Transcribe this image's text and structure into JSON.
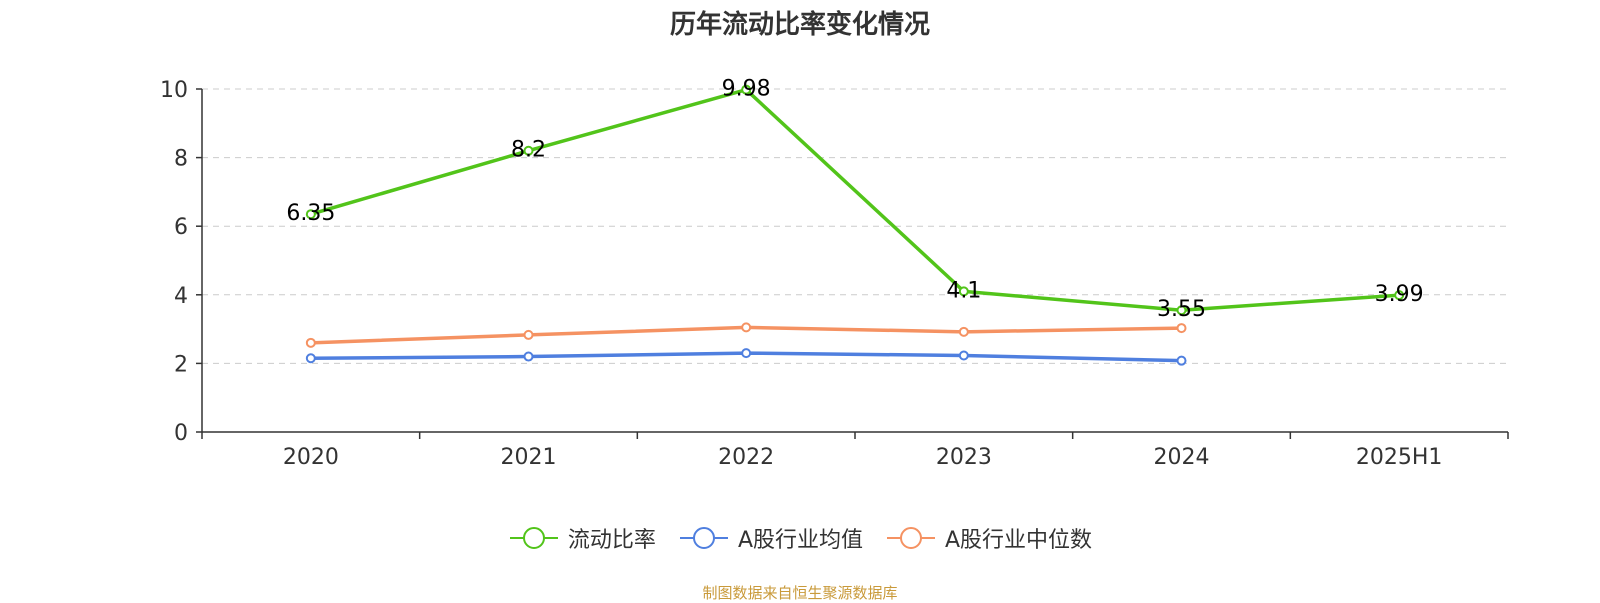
{
  "title": "历年流动比率变化情况",
  "source_note": "制图数据来自恒生聚源数据库",
  "colors": {
    "axis": "#333333",
    "grid": "#cccccc",
    "text": "#333333",
    "source": "#c99a3a"
  },
  "chart_data": {
    "type": "line",
    "title": "历年流动比率变化情况",
    "xlabel": "",
    "ylabel": "",
    "categories": [
      "2020",
      "2021",
      "2022",
      "2023",
      "2024",
      "2025H1"
    ],
    "ylim": [
      0,
      10
    ],
    "yticks": [
      0,
      2,
      4,
      6,
      8,
      10
    ],
    "grid": true,
    "legend_position": "bottom",
    "series": [
      {
        "name": "流动比率",
        "color": "#52c41a",
        "values": [
          6.35,
          8.2,
          9.98,
          4.1,
          3.55,
          3.99
        ],
        "labels": [
          "6.35",
          "8.2",
          "9.98",
          "4.1",
          "3.55",
          "3.99"
        ]
      },
      {
        "name": "A股行业均值",
        "color": "#4f7fdf",
        "values": [
          2.15,
          2.2,
          2.3,
          2.23,
          2.08,
          null
        ]
      },
      {
        "name": "A股行业中位数",
        "color": "#f59262",
        "values": [
          2.6,
          2.83,
          3.05,
          2.92,
          3.03,
          null
        ]
      }
    ]
  }
}
